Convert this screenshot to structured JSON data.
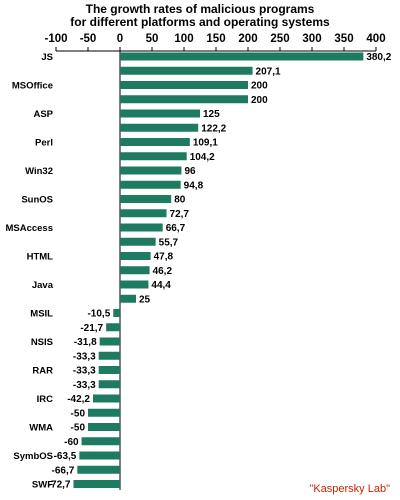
{
  "chart_data": {
    "type": "bar",
    "orientation": "horizontal",
    "title_lines": [
      "The growth rates of malicious programs",
      "for different platforms and operating systems"
    ],
    "xlim": [
      -100,
      400
    ],
    "xticks": [
      -100,
      -50,
      0,
      50,
      100,
      150,
      200,
      250,
      300,
      350,
      400
    ],
    "tick_labels": [
      "-100",
      "-50",
      "0",
      "50",
      "100",
      "150",
      "200",
      "250",
      "300",
      "350",
      "400"
    ],
    "bar_color": "#1f7a62",
    "grid": false,
    "categories": [
      "JS",
      "",
      "MSOffice",
      "",
      "ASP",
      "",
      "Perl",
      "",
      "Win32",
      "",
      "SunOS",
      "",
      "MSAccess",
      "",
      "HTML",
      "",
      "Java",
      "",
      "MSIL",
      "",
      "NSIS",
      "",
      "RAR",
      "",
      "IRC",
      "",
      "WMA",
      "",
      "SymbOS",
      "",
      "SWF"
    ],
    "values": [
      380.2,
      207.1,
      200,
      200,
      125,
      122.2,
      109.1,
      104.2,
      96,
      94.8,
      80,
      72.7,
      66.7,
      55.7,
      47.8,
      46.2,
      44.4,
      25,
      -10.5,
      -21.7,
      -31.8,
      -33.3,
      -33.3,
      -33.3,
      -42.2,
      -50,
      -50,
      -60,
      -63.5,
      -66.7,
      -72.7
    ],
    "value_labels": [
      "380,2",
      "207,1",
      "200",
      "200",
      "125",
      "122,2",
      "109,1",
      "104,2",
      "96",
      "94,8",
      "80",
      "72,7",
      "66,7",
      "55,7",
      "47,8",
      "46,2",
      "44,4",
      "25",
      "-10,5",
      "-21,7",
      "-31,8",
      "-33,3",
      "-33,3",
      "-33,3",
      "-42,2",
      "-50",
      "-50",
      "-60",
      "-63,5",
      "-66,7",
      "-72,7"
    ]
  },
  "credit": {
    "text": "\"Kaspersky Lab\"",
    "color": "#cc2200"
  }
}
